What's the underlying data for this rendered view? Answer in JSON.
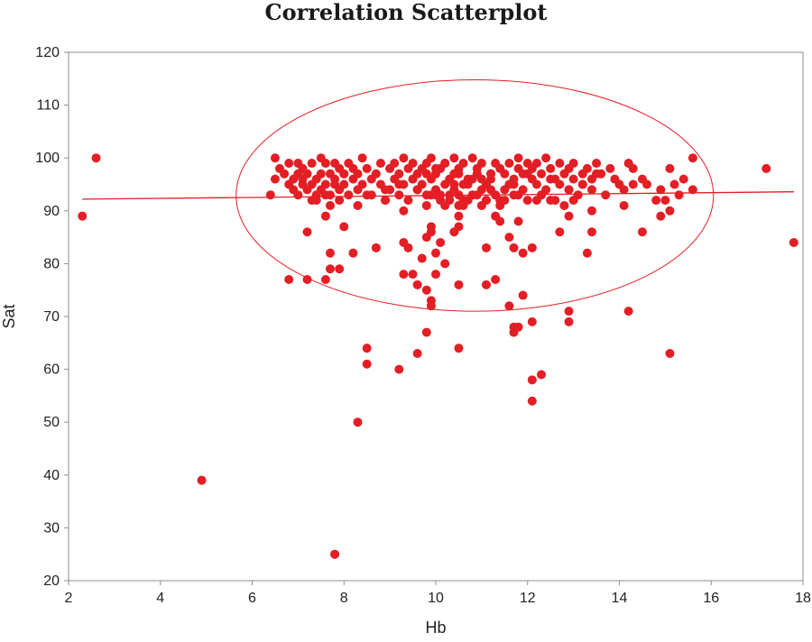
{
  "colors": {
    "points": "#e31e24",
    "trend": "#e31e24",
    "ellipse": "#e31e24",
    "axis": "#8c8c8c",
    "text": "#222222"
  },
  "chart_data": {
    "type": "scatter",
    "title": "Correlation Scatterplot",
    "xlabel": "Hb",
    "ylabel": "Sat",
    "xlim": [
      2,
      18
    ],
    "ylim": [
      20,
      120
    ],
    "xticks": [
      2,
      4,
      6,
      8,
      10,
      12,
      14,
      16,
      18
    ],
    "yticks": [
      20,
      30,
      40,
      50,
      60,
      70,
      80,
      90,
      100,
      110,
      120
    ],
    "grid": false,
    "legend": "none",
    "trendline": {
      "x": [
        2.3,
        17.8
      ],
      "y": [
        92.2,
        93.6
      ]
    },
    "ellipse": {
      "center": [
        10.85,
        92.9
      ],
      "semi_axis_x": 5.2,
      "semi_axis_y": 21.9
    },
    "points": {
      "x": [
        2.3,
        2.6,
        4.9,
        7.8,
        6.4,
        6.5,
        6.6,
        6.7,
        6.8,
        6.8,
        6.9,
        7.0,
        7.0,
        7.0,
        7.1,
        7.1,
        7.2,
        7.2,
        7.3,
        7.3,
        7.3,
        7.4,
        7.4,
        7.5,
        7.5,
        7.5,
        7.6,
        7.6,
        7.7,
        7.7,
        7.7,
        7.8,
        7.8,
        7.9,
        7.9,
        7.9,
        8.0,
        8.0,
        8.1,
        8.1,
        8.2,
        8.2,
        8.3,
        8.3,
        8.4,
        8.4,
        8.5,
        8.5,
        8.6,
        8.7,
        8.8,
        8.8,
        8.9,
        9.0,
        9.0,
        9.1,
        9.1,
        9.2,
        9.2,
        9.3,
        9.3,
        9.4,
        9.4,
        9.5,
        9.5,
        9.6,
        9.6,
        9.7,
        9.7,
        9.8,
        9.8,
        9.9,
        9.9,
        10.0,
        10.0,
        10.1,
        10.1,
        10.2,
        10.2,
        10.3,
        10.3,
        10.4,
        10.4,
        10.5,
        10.5,
        10.6,
        10.6,
        10.7,
        10.7,
        10.8,
        10.8,
        10.9,
        10.9,
        11.0,
        11.0,
        11.1,
        11.1,
        11.2,
        11.2,
        11.3,
        11.3,
        11.4,
        11.5,
        11.5,
        11.6,
        11.6,
        11.7,
        11.7,
        11.8,
        11.8,
        11.9,
        11.9,
        12.0,
        12.0,
        12.1,
        12.1,
        12.2,
        12.2,
        12.3,
        12.3,
        12.4,
        12.4,
        12.5,
        12.5,
        12.6,
        12.7,
        12.7,
        12.8,
        12.9,
        12.9,
        13.0,
        13.0,
        13.1,
        13.2,
        13.2,
        13.3,
        13.4,
        13.4,
        13.5,
        13.6,
        13.7,
        13.8,
        14.0,
        14.1,
        14.2,
        14.3,
        14.5,
        14.6,
        14.9,
        15.1,
        15.2,
        15.4,
        15.6,
        17.2,
        6.5,
        6.9,
        7.1,
        7.4,
        7.6,
        7.8,
        8.0,
        8.3,
        8.6,
        8.9,
        9.2,
        9.5,
        9.8,
        10.0,
        10.2,
        10.4,
        10.6,
        10.8,
        11.0,
        11.2,
        11.4,
        11.7,
        12.0,
        12.3,
        12.6,
        12.9,
        13.2,
        13.5,
        13.9,
        14.3,
        14.8,
        15.3,
        15.6,
        9.9,
        10.1,
        10.3,
        10.5,
        10.7,
        10.9,
        11.1,
        11.3,
        11.5,
        10.0,
        10.4,
        10.8,
        11.2,
        9.6,
        10.2,
        10.6,
        11.0,
        11.4,
        12.2,
        12.8,
        13.4,
        7.6,
        8.9,
        9.3,
        9.8,
        10.5,
        11.8,
        12.5,
        13.0,
        14.1,
        15.0,
        17.8,
        6.8,
        7.2,
        7.7,
        8.0,
        8.2,
        8.7,
        9.3,
        9.4,
        9.5,
        9.7,
        9.8,
        9.9,
        9.9,
        10.0,
        10.1,
        10.2,
        10.4,
        10.5,
        10.5,
        11.1,
        11.3,
        11.4,
        11.6,
        11.7,
        11.8,
        11.9,
        12.1,
        12.7,
        12.9,
        13.3,
        13.4,
        14.5,
        14.9,
        15.1,
        7.6,
        7.2,
        7.7,
        7.9,
        9.3,
        9.6,
        9.8,
        9.9,
        9.9,
        10.0,
        10.5,
        11.1,
        11.3,
        11.6,
        11.7,
        11.8,
        11.9,
        12.1,
        12.9,
        12.9,
        14.2,
        8.5,
        8.5,
        9.2,
        9.6,
        9.8,
        10.5,
        11.7,
        12.1,
        12.1,
        12.3,
        15.1,
        8.3,
        7.8
      ],
      "y": [
        89,
        100,
        39,
        25,
        93,
        96,
        98,
        97,
        99,
        95,
        96,
        99,
        97,
        93,
        95,
        98,
        97,
        94,
        99,
        95,
        92,
        96,
        93,
        100,
        94,
        97,
        99,
        95,
        93,
        97,
        91,
        96,
        99,
        94,
        98,
        92,
        97,
        95,
        99,
        93,
        96,
        98,
        94,
        97,
        100,
        95,
        98,
        93,
        96,
        97,
        99,
        95,
        92,
        98,
        94,
        96,
        99,
        93,
        97,
        95,
        100,
        98,
        92,
        96,
        99,
        94,
        97,
        98,
        95,
        93,
        99,
        96,
        100,
        94,
        97,
        92,
        98,
        95,
        99,
        93,
        96,
        100,
        94,
        97,
        98,
        92,
        99,
        95,
        96,
        100,
        93,
        97,
        98,
        94,
        99,
        95,
        92,
        97,
        96,
        99,
        93,
        98,
        94,
        97,
        99,
        95,
        93,
        96,
        100,
        98,
        94,
        97,
        99,
        92,
        96,
        98,
        95,
        99,
        93,
        97,
        100,
        94,
        98,
        96,
        92,
        99,
        95,
        97,
        94,
        98,
        96,
        99,
        93,
        97,
        95,
        98,
        94,
        96,
        99,
        97,
        93,
        98,
        95,
        94,
        99,
        98,
        96,
        95,
        94,
        98,
        95,
        96,
        100,
        98,
        100,
        94,
        96,
        92,
        93,
        95,
        97,
        91,
        93,
        94,
        95,
        96,
        97,
        98,
        99,
        97,
        95,
        93,
        96,
        94,
        92,
        95,
        97,
        93,
        96,
        94,
        95,
        97,
        96,
        95,
        92,
        93,
        94,
        93,
        93,
        92,
        93,
        92,
        93,
        92,
        93,
        92,
        93,
        95,
        96,
        97,
        94,
        91,
        91,
        91,
        91,
        92,
        91,
        90,
        89,
        92,
        90,
        91,
        91,
        93,
        92,
        92,
        91,
        92,
        84,
        77,
        86,
        79,
        87,
        82,
        83,
        84,
        83,
        78,
        81,
        85,
        86,
        87,
        82,
        84,
        80,
        86,
        87,
        89,
        83,
        89,
        88,
        85,
        83,
        88,
        82,
        83,
        86,
        89,
        82,
        86,
        86,
        89,
        90,
        77,
        77,
        82,
        79,
        78,
        76,
        75,
        72,
        73,
        78,
        76,
        76,
        77,
        72,
        67,
        68,
        74,
        69,
        71,
        69,
        71,
        64,
        61,
        60,
        63,
        67,
        64,
        68,
        58,
        54,
        59,
        63,
        50,
        25
      ]
    }
  }
}
